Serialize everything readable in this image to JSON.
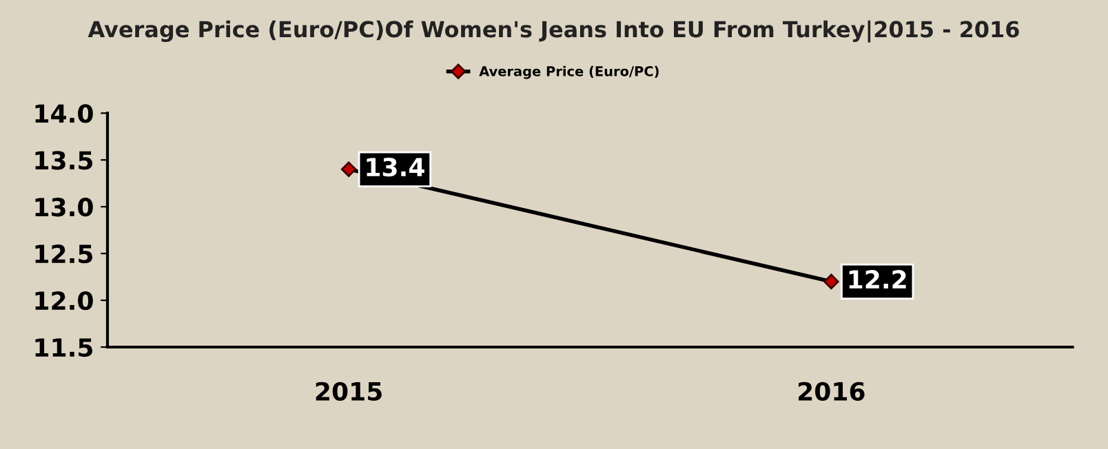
{
  "chart_data": {
    "type": "line",
    "title": "Average Price (Euro/PC)Of Women's Jeans Into EU From Turkey|2015 - 2016",
    "categories": [
      "2015",
      "2016"
    ],
    "series": [
      {
        "name": "Average Price (Euro/PC)",
        "color": "#000000",
        "values": [
          13.4,
          12.2
        ]
      }
    ],
    "ylim": [
      11.5,
      14.0
    ],
    "yticks": [
      "11.5",
      "12.0",
      "12.5",
      "13.0",
      "13.5",
      "14.0"
    ],
    "marker": "diamond",
    "line_style": "solid",
    "legend": "top",
    "data_labels": true,
    "grid": false
  }
}
